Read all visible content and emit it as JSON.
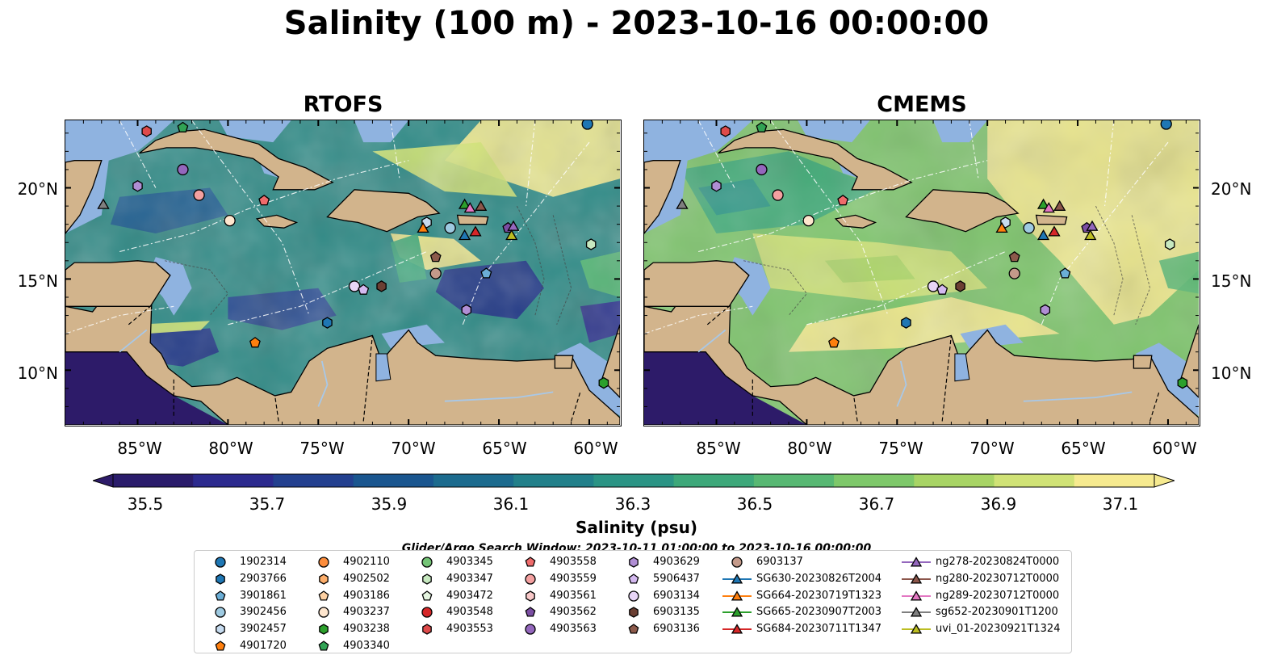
{
  "title": "Salinity (100 m) - 2023-10-16 00:00:00",
  "panels": [
    {
      "title": "RTOFS",
      "style": "rtofs"
    },
    {
      "title": "CMEMS",
      "style": "cmems"
    }
  ],
  "lon_ticks": [
    "85°W",
    "80°W",
    "75°W",
    "70°W",
    "65°W",
    "60°W"
  ],
  "lat_ticks": [
    "20°N",
    "15°N",
    "10°N"
  ],
  "colorbar": {
    "ticks": [
      "35.5",
      "35.7",
      "35.9",
      "36.1",
      "36.3",
      "36.5",
      "36.7",
      "36.9",
      "37.1"
    ],
    "label": "Salinity (psu)",
    "colors": [
      "#2a1c6b",
      "#2c2a8e",
      "#23408f",
      "#1a568f",
      "#1c6b8e",
      "#22808a",
      "#2b9485",
      "#3da87a",
      "#58b873",
      "#7ec86a",
      "#a8d465",
      "#d0e276",
      "#f6ea8f"
    ]
  },
  "search_window": "Glider/Argo Search Window: 2023-10-11 01:00:00 to 2023-10-16 00:00:00",
  "colors": {
    "land": "#d2b48c",
    "shelf": "#8fb3e0",
    "deep": "#2d1b69",
    "glider_SG630": "#1f77b4",
    "glider_SG664": "#ff7f0e",
    "glider_SG665": "#2ca02c",
    "glider_SG684": "#d62728"
  },
  "legend": [
    {
      "label": "1902314",
      "color": "#1f77b4",
      "marker": "circle"
    },
    {
      "label": "2903766",
      "color": "#1f77b4",
      "marker": "hexagon"
    },
    {
      "label": "3901861",
      "color": "#6baed6",
      "marker": "pentagon"
    },
    {
      "label": "3902456",
      "color": "#9ecae1",
      "marker": "circle"
    },
    {
      "label": "3902457",
      "color": "#c6dbef",
      "marker": "hexagon"
    },
    {
      "label": "4901720",
      "color": "#ff7f0e",
      "marker": "pentagon"
    },
    {
      "label": "4902110",
      "color": "#fd8d3c",
      "marker": "circle"
    },
    {
      "label": "4902502",
      "color": "#fdae6b",
      "marker": "hexagon"
    },
    {
      "label": "4903186",
      "color": "#fdd0a2",
      "marker": "pentagon"
    },
    {
      "label": "4903237",
      "color": "#fee6ce",
      "marker": "circle"
    },
    {
      "label": "4903238",
      "color": "#2ca02c",
      "marker": "hexagon"
    },
    {
      "label": "4903340",
      "color": "#31a354",
      "marker": "pentagon"
    },
    {
      "label": "4903345",
      "color": "#74c476",
      "marker": "circle"
    },
    {
      "label": "4903347",
      "color": "#c7e9c0",
      "marker": "hexagon"
    },
    {
      "label": "4903472",
      "color": "#e5f5e0",
      "marker": "pentagon"
    },
    {
      "label": "4903548",
      "color": "#d62728",
      "marker": "circle"
    },
    {
      "label": "4903553",
      "color": "#de4a4a",
      "marker": "hexagon"
    },
    {
      "label": "4903558",
      "color": "#ef6b6b",
      "marker": "pentagon"
    },
    {
      "label": "4903559",
      "color": "#f4a0a0",
      "marker": "circle"
    },
    {
      "label": "4903561",
      "color": "#f8c8c8",
      "marker": "hexagon"
    },
    {
      "label": "4903562",
      "color": "#7b4ea3",
      "marker": "pentagon"
    },
    {
      "label": "4903563",
      "color": "#9467bd",
      "marker": "circle"
    },
    {
      "label": "4903629",
      "color": "#b08ed4",
      "marker": "hexagon"
    },
    {
      "label": "5906437",
      "color": "#d4b9f0",
      "marker": "pentagon"
    },
    {
      "label": "6903134",
      "color": "#e8d5f7",
      "marker": "circle"
    },
    {
      "label": "6903135",
      "color": "#6b3f33",
      "marker": "hexagon"
    },
    {
      "label": "6903136",
      "color": "#8c5a4b",
      "marker": "pentagon"
    },
    {
      "label": "6903137",
      "color": "#c49a8a",
      "marker": "circle"
    },
    {
      "label": "SG630-20230826T2004",
      "color": "#1f77b4",
      "marker": "triangle",
      "line": true
    },
    {
      "label": "SG664-20230719T1323",
      "color": "#ff7f0e",
      "marker": "triangle",
      "line": true
    },
    {
      "label": "SG665-20230907T2003",
      "color": "#2ca02c",
      "marker": "triangle",
      "line": true
    },
    {
      "label": "SG684-20230711T1347",
      "color": "#d62728",
      "marker": "triangle",
      "line": true
    },
    {
      "label": "ng278-20230824T0000",
      "color": "#9467bd",
      "marker": "triangle",
      "line": true
    },
    {
      "label": "ng280-20230712T0000",
      "color": "#8c564b",
      "marker": "triangle",
      "line": true
    },
    {
      "label": "ng289-20230712T0000",
      "color": "#e377c2",
      "marker": "triangle",
      "line": true
    },
    {
      "label": "sg652-20230901T1200",
      "color": "#7f7f7f",
      "marker": "triangle",
      "line": true
    },
    {
      "label": "uvi_01-20230921T1324",
      "color": "#bcbd22",
      "marker": "triangle",
      "line": true
    }
  ],
  "markers": [
    {
      "id": "1902314",
      "lon": -60.1,
      "lat": 23.5
    },
    {
      "id": "4903340",
      "lon": -82.5,
      "lat": 23.3
    },
    {
      "id": "4903553",
      "lon": -84.5,
      "lat": 23.1
    },
    {
      "id": "4903563",
      "lon": -82.5,
      "lat": 21.0
    },
    {
      "id": "4903629",
      "lon": -85.0,
      "lat": 20.1
    },
    {
      "id": "4903559",
      "lon": -81.6,
      "lat": 19.6
    },
    {
      "id": "4903558",
      "lon": -78.0,
      "lat": 19.3
    },
    {
      "id": "4903237",
      "lon": -79.9,
      "lat": 18.2
    },
    {
      "id": "3902456",
      "lon": -67.7,
      "lat": 17.8
    },
    {
      "id": "3902457",
      "lon": -69.0,
      "lat": 18.1
    },
    {
      "id": "4903136x",
      "lon": -68.5,
      "lat": 16.2
    },
    {
      "id": "6903137",
      "lon": -68.5,
      "lat": 15.3
    },
    {
      "id": "3901861",
      "lon": -65.7,
      "lat": 15.3
    },
    {
      "id": "6903134",
      "lon": -73.0,
      "lat": 14.6
    },
    {
      "id": "5906437",
      "lon": -72.5,
      "lat": 14.4
    },
    {
      "id": "6903135",
      "lon": -71.5,
      "lat": 14.6
    },
    {
      "id": "4903629b",
      "lon": -66.8,
      "lat": 13.3
    },
    {
      "id": "2903766",
      "lon": -74.5,
      "lat": 12.6
    },
    {
      "id": "4901720",
      "lon": -78.5,
      "lat": 11.5
    },
    {
      "id": "4903347",
      "lon": -59.9,
      "lat": 16.9
    },
    {
      "id": "4903238",
      "lon": -59.2,
      "lat": 9.3
    },
    {
      "id": "4903562",
      "lon": -64.5,
      "lat": 17.8
    },
    {
      "id": "SG630",
      "lon": -66.9,
      "lat": 17.4
    },
    {
      "id": "SG664",
      "lon": -69.2,
      "lat": 17.8
    },
    {
      "id": "SG665",
      "lon": -66.9,
      "lat": 19.1
    },
    {
      "id": "SG684",
      "lon": -66.3,
      "lat": 17.6
    },
    {
      "id": "ng278",
      "lon": -64.2,
      "lat": 17.9
    },
    {
      "id": "ng280",
      "lon": -66.0,
      "lat": 19.0
    },
    {
      "id": "ng289",
      "lon": -66.6,
      "lat": 18.9
    },
    {
      "id": "sg652",
      "lon": -86.9,
      "lat": 19.1
    },
    {
      "id": "uvi_01",
      "lon": -64.3,
      "lat": 17.4
    }
  ]
}
